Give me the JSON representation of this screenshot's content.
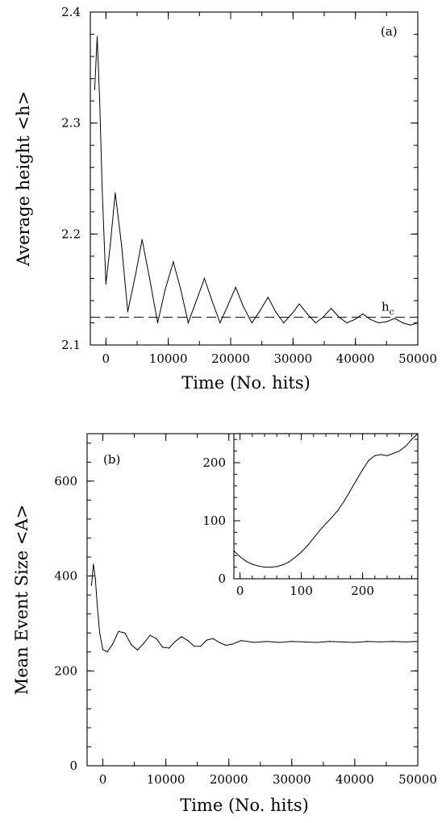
{
  "chart_data": [
    {
      "type": "line",
      "panel_label": "(a)",
      "xlabel": "Time (No. hits)",
      "ylabel": "Average height <h>",
      "xlim": [
        -2500,
        50000
      ],
      "ylim": [
        2.1,
        2.4
      ],
      "xticks": [
        0,
        10000,
        20000,
        30000,
        40000,
        50000
      ],
      "xtick_labels": [
        "0",
        "10000",
        "20000",
        "30000",
        "40000",
        "50000"
      ],
      "yticks": [
        2.1,
        2.2,
        2.3,
        2.4
      ],
      "ytick_labels": [
        "2.1",
        "2.2",
        "2.3",
        "2.4"
      ],
      "reference_line": {
        "label_main": "h",
        "label_sub": "c",
        "y": 2.125,
        "style": "dashed"
      },
      "series": [
        {
          "x": [
            -1800,
            -1400,
            -1000,
            -600,
            0,
            700,
            1500,
            2500,
            3500,
            4800,
            5800,
            7000,
            8300,
            9500,
            10800,
            12000,
            13200,
            14500,
            15800,
            17000,
            18300,
            19500,
            20800,
            22000,
            23400,
            24600,
            26000,
            27200,
            28500,
            29800,
            31000,
            32300,
            33600,
            34800,
            36100,
            37400,
            38600,
            39900,
            41200,
            42400,
            43700,
            45000,
            46300,
            47600,
            48800,
            50000
          ],
          "y": [
            2.33,
            2.378,
            2.32,
            2.24,
            2.155,
            2.19,
            2.237,
            2.19,
            2.13,
            2.165,
            2.195,
            2.16,
            2.12,
            2.15,
            2.175,
            2.15,
            2.12,
            2.14,
            2.16,
            2.14,
            2.12,
            2.135,
            2.152,
            2.135,
            2.12,
            2.13,
            2.143,
            2.13,
            2.12,
            2.128,
            2.137,
            2.128,
            2.12,
            2.125,
            2.133,
            2.125,
            2.12,
            2.123,
            2.128,
            2.123,
            2.12,
            2.121,
            2.124,
            2.12,
            2.118,
            2.12
          ]
        }
      ]
    },
    {
      "type": "line",
      "panel_label": "(b)",
      "xlabel": "Time (No. hits)",
      "ylabel": "Mean Event Size <A>",
      "xlim": [
        -2500,
        50000
      ],
      "ylim": [
        0,
        700
      ],
      "xticks": [
        0,
        10000,
        20000,
        30000,
        40000,
        50000
      ],
      "xtick_labels": [
        "0",
        "10000",
        "20000",
        "30000",
        "40000",
        "50000"
      ],
      "yticks": [
        0,
        200,
        400,
        600
      ],
      "ytick_labels": [
        "0",
        "200",
        "400",
        "600"
      ],
      "series": [
        {
          "x": [
            -1800,
            -1500,
            -1200,
            -900,
            -500,
            0,
            700,
            1500,
            2500,
            3500,
            4500,
            5500,
            6500,
            7500,
            8500,
            9500,
            10500,
            11500,
            12500,
            13500,
            14500,
            15500,
            16500,
            17500,
            18500,
            19500,
            20500,
            22000,
            24000,
            26000,
            28000,
            30000,
            32000,
            34000,
            36000,
            38000,
            40000,
            42000,
            44000,
            46000,
            48000,
            50000
          ],
          "y": [
            380,
            425,
            395,
            340,
            280,
            245,
            240,
            255,
            283,
            280,
            255,
            244,
            258,
            275,
            268,
            250,
            248,
            262,
            272,
            264,
            252,
            252,
            265,
            268,
            260,
            254,
            256,
            264,
            260,
            262,
            260,
            262,
            261,
            260,
            262,
            261,
            260,
            262,
            261,
            262,
            261,
            262
          ]
        }
      ],
      "inset": {
        "xlim": [
          -10,
          290
        ],
        "ylim": [
          0,
          250
        ],
        "xticks": [
          0,
          100,
          200
        ],
        "xtick_labels": [
          "0",
          "100",
          "200"
        ],
        "yticks": [
          0,
          100,
          200
        ],
        "ytick_labels": [
          "0",
          "100",
          "200"
        ],
        "series": [
          {
            "x": [
              -10,
              0,
              10,
              20,
              30,
              40,
              50,
              60,
              70,
              80,
              90,
              100,
              110,
              120,
              130,
              140,
              150,
              160,
              170,
              180,
              190,
              200,
              210,
              220,
              230,
              240,
              250,
              260,
              270,
              280,
              290
            ],
            "y": [
              48,
              38,
              30,
              25,
              22,
              20,
              20,
              21,
              24,
              29,
              37,
              46,
              57,
              70,
              83,
              95,
              106,
              118,
              134,
              152,
              170,
              188,
              204,
              212,
              214,
              212,
              216,
              220,
              228,
              240,
              250
            ]
          }
        ]
      }
    }
  ]
}
